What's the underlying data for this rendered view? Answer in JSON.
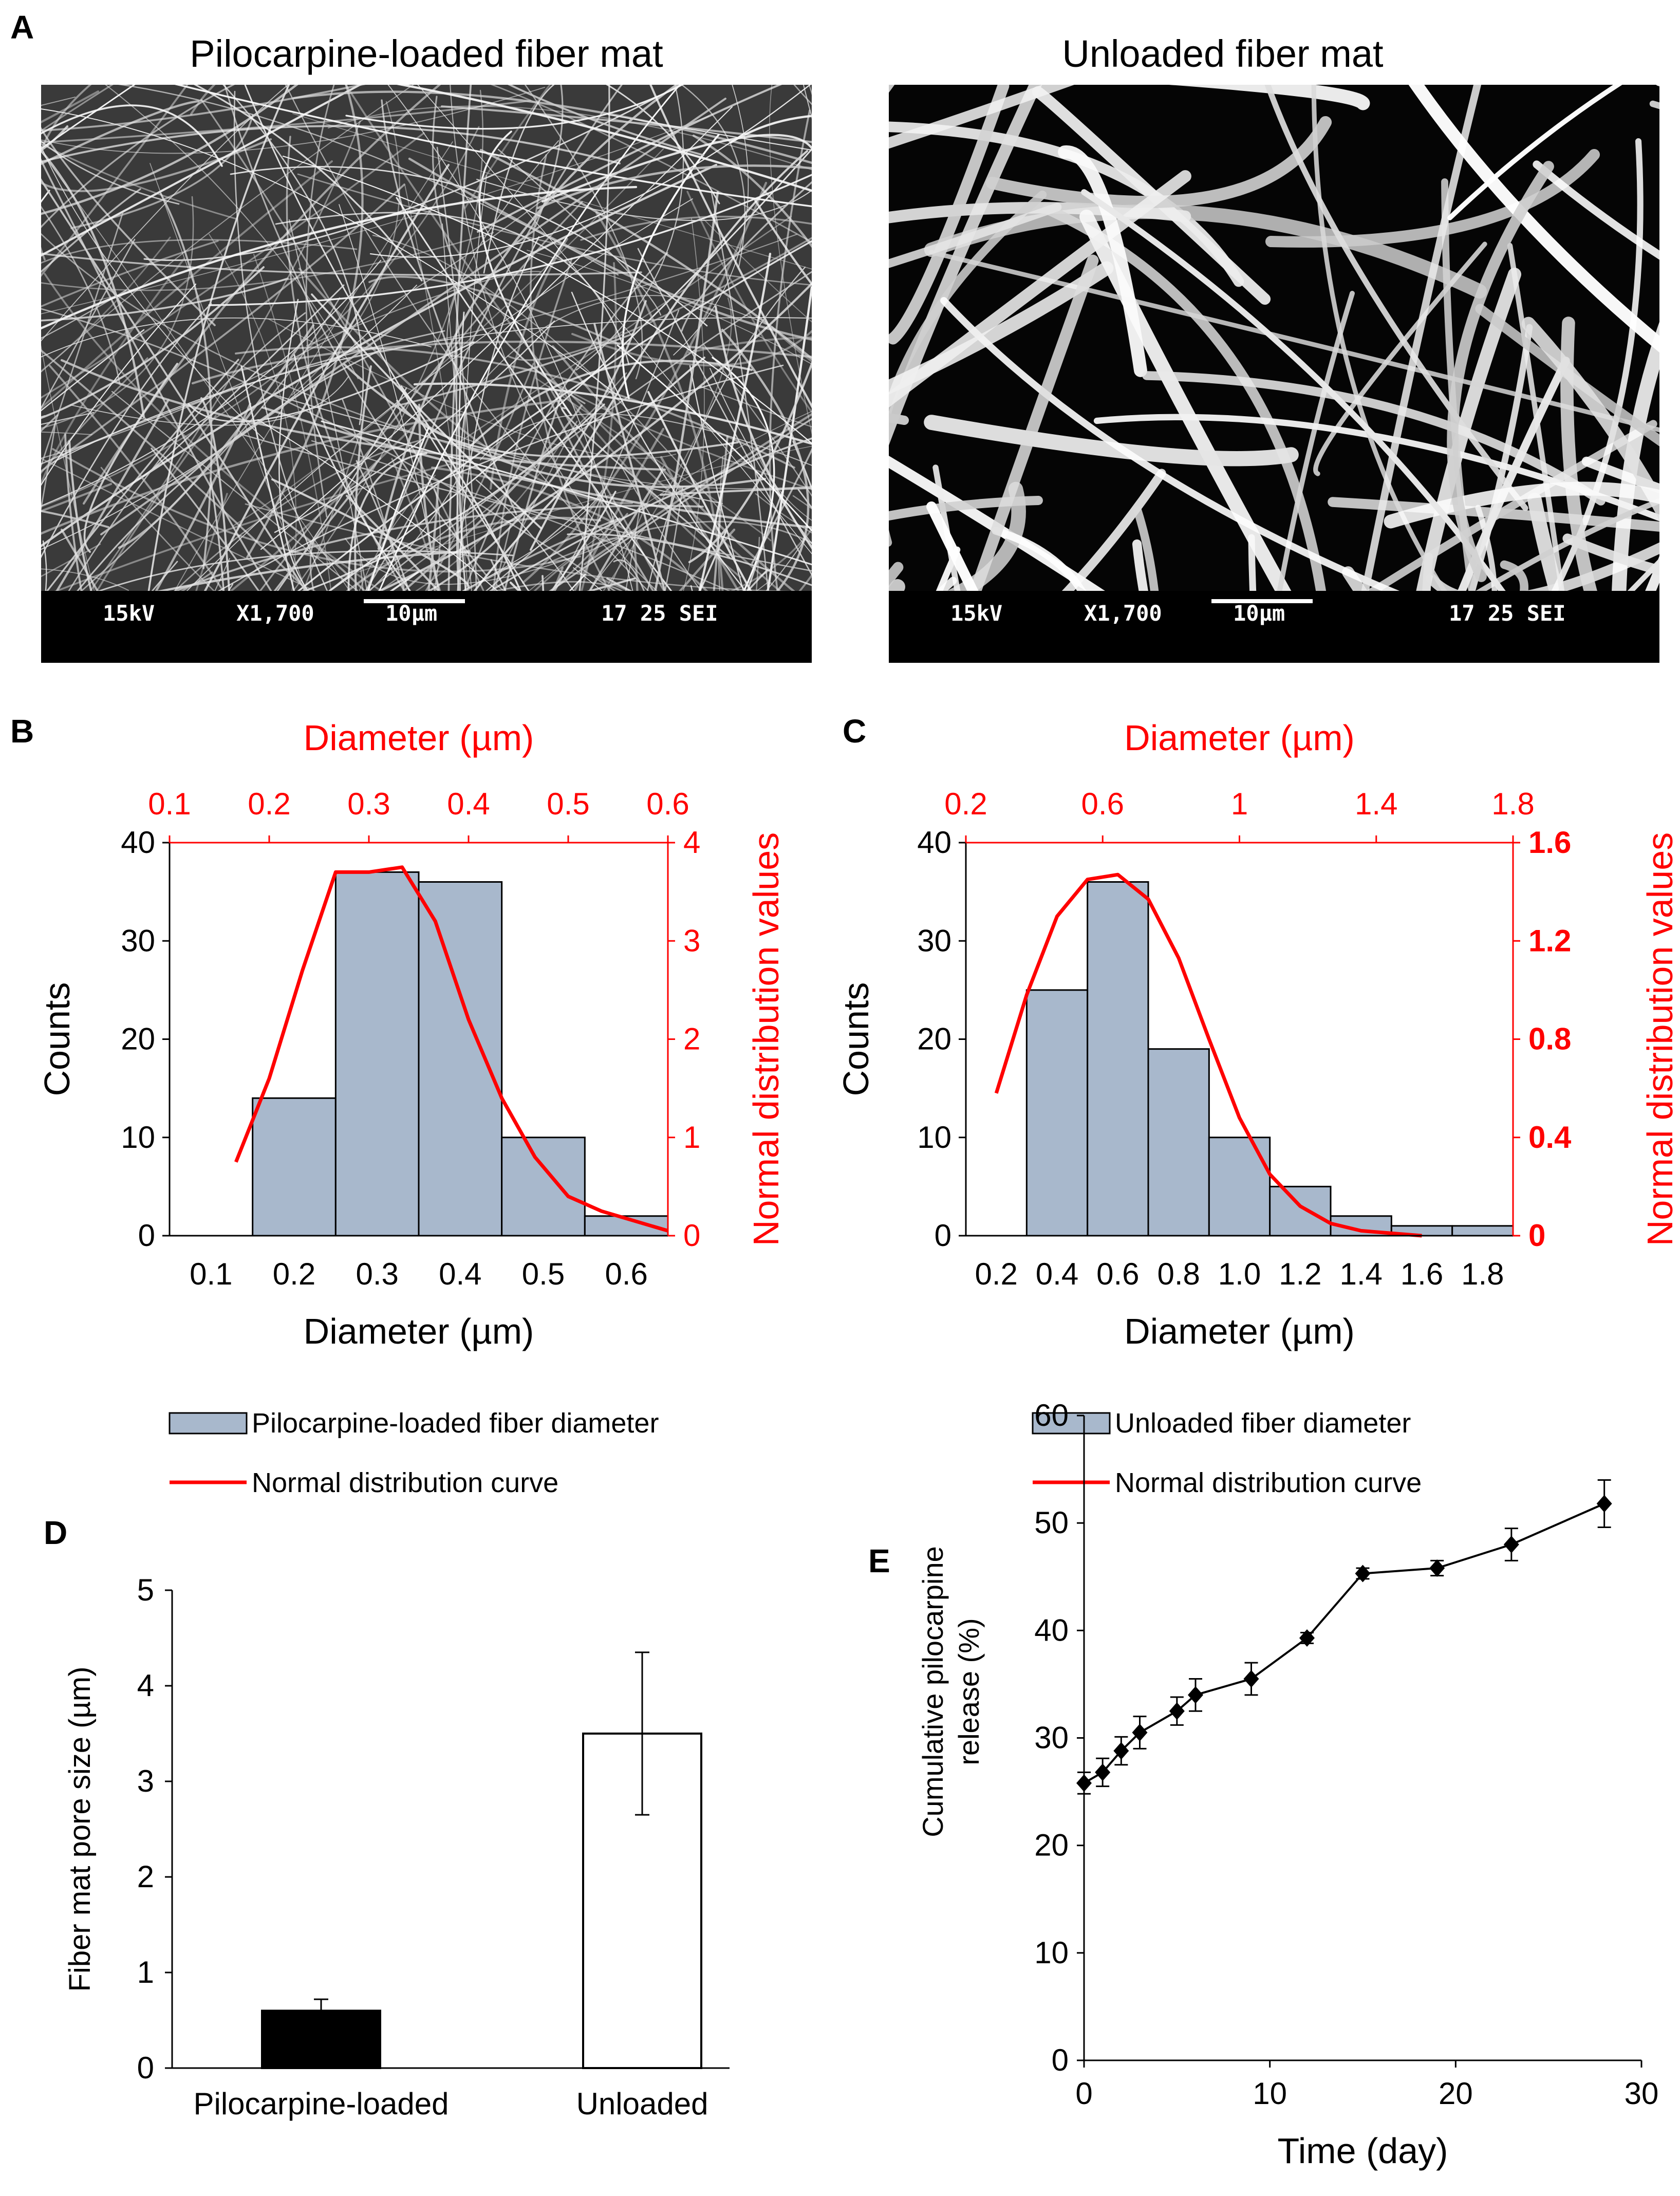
{
  "panel_labels": {
    "A": "A",
    "B": "B",
    "C": "C",
    "D": "D",
    "E": "E"
  },
  "sem_images": [
    {
      "title": "Pilocarpine-loaded fiber mat",
      "voltage": "15kV",
      "magnification": "X1,700",
      "scale": "10µm",
      "code": "17 25 SEI",
      "style": "dense"
    },
    {
      "title": "Unloaded fiber mat",
      "voltage": "15kV",
      "magnification": "X1,700",
      "scale": "10µm",
      "code": "17 25 SEI",
      "style": "sparse"
    }
  ],
  "chart_data": [
    {
      "panel": "B",
      "type": "bar",
      "title": "",
      "categories": [
        "0.1",
        "0.2",
        "0.3",
        "0.4",
        "0.5",
        "0.6"
      ],
      "bar_series": {
        "name": "Pilocarpine-loaded fiber diameter",
        "bins": [
          0.2,
          0.3,
          0.4,
          0.5,
          0.6
        ],
        "values": [
          14,
          37,
          36,
          10,
          2
        ],
        "color": "#a8b8cc"
      },
      "curve_series": {
        "name": "Normal distribution curve",
        "x": [
          0.13,
          0.17,
          0.21,
          0.25,
          0.29,
          0.33,
          0.37,
          0.41,
          0.45,
          0.49,
          0.53,
          0.57,
          0.61,
          0.65
        ],
        "y": [
          0.75,
          1.6,
          2.7,
          3.7,
          3.7,
          3.75,
          3.2,
          2.2,
          1.4,
          0.8,
          0.4,
          0.25,
          0.15,
          0.05
        ],
        "color": "#ff0000"
      },
      "xlabel": "Diameter (µm)",
      "ylabel": "Counts",
      "x_range": [
        0.05,
        0.65
      ],
      "ylim": [
        0,
        40
      ],
      "y_ticks": [
        "0",
        "10",
        "20",
        "30",
        "40"
      ],
      "x2label": "Diameter (µm)",
      "x2_ticks": [
        "0.1",
        "0.2",
        "0.3",
        "0.4",
        "0.5",
        "0.6"
      ],
      "x2_range": [
        0.1,
        0.6
      ],
      "y2label": "Normal distribution values",
      "y2lim": [
        0,
        4
      ],
      "y2_ticks": [
        "0",
        "1",
        "2",
        "3",
        "4"
      ],
      "legend": [
        "Pilocarpine-loaded fiber diameter",
        "Normal distribution curve"
      ]
    },
    {
      "panel": "C",
      "type": "bar",
      "title": "",
      "categories": [
        "0.2",
        "0.4",
        "0.6",
        "0.8",
        "1.0",
        "1.2",
        "1.4",
        "1.6",
        "1.8"
      ],
      "bar_series": {
        "name": "Unloaded fiber diameter",
        "bins": [
          0.4,
          0.6,
          0.8,
          1.0,
          1.2,
          1.4,
          1.6,
          1.8
        ],
        "values": [
          25,
          36,
          19,
          10,
          5,
          2,
          1,
          1
        ],
        "color": "#a8b8cc"
      },
      "curve_series": {
        "name": "Normal distribution curve",
        "x": [
          0.2,
          0.3,
          0.4,
          0.5,
          0.6,
          0.7,
          0.8,
          0.9,
          1.0,
          1.1,
          1.2,
          1.3,
          1.4,
          1.5,
          1.6
        ],
        "y": [
          0.58,
          0.98,
          1.3,
          1.45,
          1.47,
          1.37,
          1.13,
          0.8,
          0.48,
          0.25,
          0.12,
          0.05,
          0.02,
          0.01,
          0.0
        ],
        "color": "#ff0000"
      },
      "xlabel": "Diameter (µm)",
      "ylabel": "Counts",
      "x_range": [
        0.1,
        1.9
      ],
      "ylim": [
        0,
        40
      ],
      "y_ticks": [
        "0",
        "10",
        "20",
        "30",
        "40"
      ],
      "x2label": "Diameter (µm)",
      "x2_ticks": [
        "0.2",
        "0.6",
        "1",
        "1.4",
        "1.8"
      ],
      "x2_range": [
        0.2,
        1.8
      ],
      "y2label": "Normal distribution values",
      "y2lim": [
        0,
        1.6
      ],
      "y2_ticks": [
        "0",
        "0.4",
        "0.8",
        "1.2",
        "1.6"
      ],
      "legend": [
        "Unloaded fiber diameter",
        "Normal distribution curve"
      ]
    },
    {
      "panel": "D",
      "type": "bar",
      "title": "",
      "categories": [
        "Pilocarpine-loaded",
        "Unloaded"
      ],
      "values": [
        0.6,
        3.5
      ],
      "errors": [
        0.12,
        0.85
      ],
      "colors": [
        "#000000",
        "#ffffff"
      ],
      "xlabel": "",
      "ylabel": "Fiber mat pore size (µm)",
      "ylim": [
        0,
        5
      ],
      "y_ticks": [
        "0",
        "1",
        "2",
        "3",
        "4",
        "5"
      ]
    },
    {
      "panel": "E",
      "type": "line",
      "title": "",
      "series": [
        {
          "name": "Cumulative pilocarpine release",
          "x": [
            0,
            1,
            2,
            3,
            5,
            6,
            9,
            12,
            15,
            19,
            23,
            28
          ],
          "y": [
            25.8,
            26.8,
            28.8,
            30.5,
            32.5,
            34.0,
            35.5,
            39.3,
            45.3,
            45.8,
            48.0,
            51.8
          ],
          "errors": [
            1.0,
            1.3,
            1.3,
            1.5,
            1.3,
            1.5,
            1.5,
            0.5,
            0.5,
            0.7,
            1.5,
            2.2
          ]
        }
      ],
      "xlabel": "Time (day)",
      "ylabel": "Cumulative  pilocarpine release (%)",
      "ylabel_lines": [
        "Cumulative  pilocarpine",
        "release (%)"
      ],
      "xlim": [
        0,
        30
      ],
      "ylim": [
        0,
        60
      ],
      "x_ticks": [
        "0",
        "10",
        "20",
        "30"
      ],
      "y_ticks": [
        "0",
        "10",
        "20",
        "30",
        "40",
        "50",
        "60"
      ]
    }
  ]
}
